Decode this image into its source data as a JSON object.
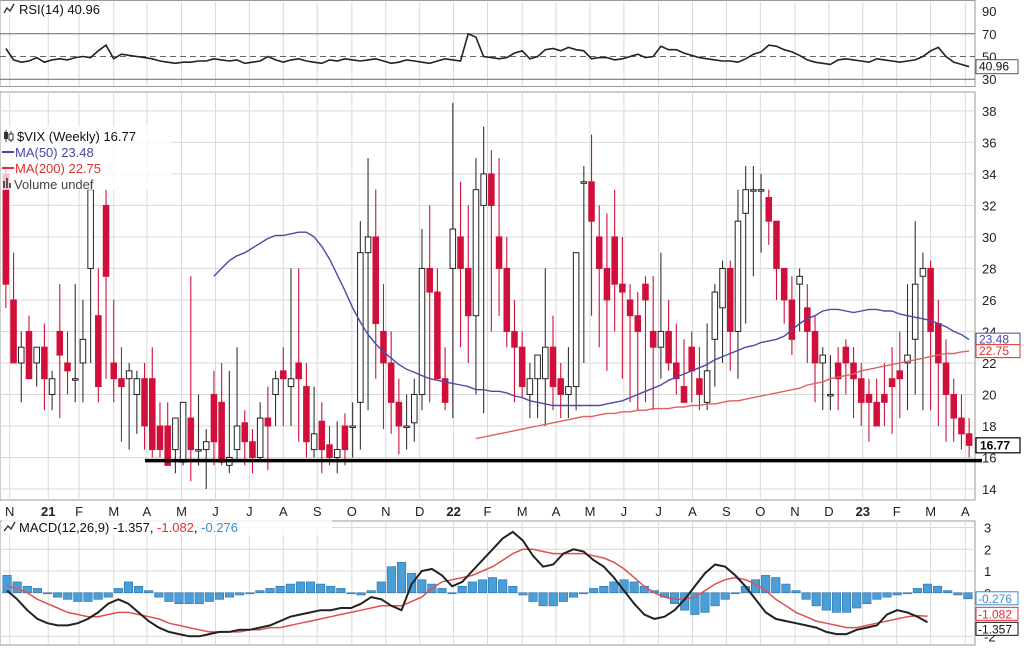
{
  "chart_data": [
    {
      "panel": "rsi",
      "type": "line",
      "header": "RSI(14) 40.96",
      "title": "RSI(14)",
      "last_value_label": "40.96",
      "y_ticks": [
        "30",
        "50",
        "70",
        "90"
      ],
      "ylim": [
        24,
        98
      ],
      "reference_lines": [
        30,
        50,
        70
      ],
      "x": [
        0,
        1,
        2,
        3,
        4,
        5,
        6,
        7,
        8,
        9,
        10,
        11,
        12,
        13,
        14,
        15,
        16,
        17,
        18,
        19,
        20,
        21,
        22,
        23,
        24,
        25,
        26,
        27,
        28,
        29,
        30,
        31,
        32,
        33,
        34,
        35,
        36,
        37,
        38,
        39,
        40,
        41,
        42,
        43,
        44,
        45,
        46,
        47,
        48,
        49,
        50,
        51,
        52,
        53,
        54,
        55,
        56,
        57,
        58,
        59,
        60,
        61,
        62,
        63,
        64,
        65,
        66,
        67,
        68,
        69,
        70,
        71,
        72,
        73,
        74,
        75,
        76,
        77,
        78,
        79,
        80,
        81,
        82,
        83,
        84,
        85,
        86,
        87,
        88,
        89,
        90,
        91,
        92,
        93,
        94,
        95,
        96,
        97,
        98,
        99,
        100,
        101,
        102,
        103,
        104,
        105,
        106,
        107,
        108,
        109,
        110,
        111,
        112,
        113,
        114,
        115,
        116,
        117,
        118,
        119,
        120,
        121,
        122,
        123,
        124,
        125
      ],
      "values": [
        57,
        47,
        45,
        46,
        49,
        45,
        47,
        48,
        47,
        49,
        50,
        49,
        55,
        60,
        48,
        52,
        51,
        50,
        49,
        48,
        46,
        45,
        44,
        45,
        45,
        46,
        46,
        48,
        47,
        46,
        47,
        44,
        45,
        46,
        50,
        47,
        45,
        47,
        48,
        46,
        45,
        44,
        47,
        46,
        48,
        47,
        46,
        47,
        48,
        46,
        44,
        45,
        47,
        46,
        45,
        44,
        46,
        48,
        47,
        46,
        70,
        67,
        50,
        49,
        48,
        49,
        53,
        55,
        48,
        50,
        56,
        57,
        55,
        58,
        56,
        55,
        48,
        49,
        49,
        47,
        48,
        50,
        52,
        49,
        50,
        59,
        56,
        56,
        53,
        51,
        49,
        48,
        47,
        46,
        46,
        45,
        48,
        52,
        54,
        60,
        59,
        56,
        54,
        51,
        47,
        45,
        44,
        43,
        47,
        48,
        47,
        46,
        45,
        48,
        47,
        46,
        45,
        46,
        47,
        50,
        55,
        58,
        50,
        45,
        43,
        41
      ]
    },
    {
      "panel": "price",
      "type": "candlestick",
      "header": "$VIX (Weekly) 16.77",
      "title": "$VIX (Weekly)",
      "last_value": 16.77,
      "last_value_label": "16.77",
      "legend": [
        {
          "label": "MA(50) 23.48",
          "color": "#4747a8"
        },
        {
          "label": "MA(200) 22.75",
          "color": "#e03030"
        },
        {
          "label": "Volume undef",
          "color": "#555555"
        }
      ],
      "y_ticks": [
        "14",
        "16",
        "18",
        "20",
        "22",
        "24",
        "26",
        "28",
        "30",
        "32",
        "34",
        "36",
        "38"
      ],
      "ylim": [
        13.3,
        39.2
      ],
      "support_level": 15.8,
      "x_labels": [
        "N",
        "21",
        "F",
        "M",
        "A",
        "M",
        "J",
        "J",
        "A",
        "S",
        "O",
        "N",
        "D",
        "22",
        "F",
        "M",
        "A",
        "M",
        "J",
        "J",
        "A",
        "S",
        "O",
        "N",
        "D",
        "23",
        "F",
        "M",
        "A"
      ],
      "bold_x_labels": [
        "21",
        "22",
        "23"
      ],
      "x_label_week": [
        0.5,
        5.5,
        9.5,
        14,
        18.3,
        22.8,
        27.2,
        31.6,
        36,
        40.4,
        44.9,
        49.3,
        53.7,
        58.1,
        62.5,
        67,
        71.4,
        75.8,
        80.2,
        84.7,
        89.1,
        93.5,
        97.9,
        102.4,
        106.8,
        111.2,
        115.6,
        120,
        124.5
      ],
      "categories_count": 126,
      "candles": {
        "open": [
          34,
          26,
          22,
          24,
          22,
          23,
          20,
          24,
          22,
          21,
          22,
          28,
          25,
          32,
          22,
          21,
          21,
          20,
          21,
          21,
          18,
          18,
          16.5,
          15.7,
          18.5,
          16.5,
          16.5,
          20,
          19.5,
          15.5,
          16.5,
          18.2,
          17,
          16,
          18.5,
          20,
          21.5,
          20.5,
          22,
          20.5,
          16.5,
          18.3,
          16.8,
          16,
          18,
          18,
          19.5,
          29,
          30,
          24,
          22,
          19.5,
          18,
          18.2,
          20,
          28,
          26.5,
          21,
          28,
          30,
          28,
          25,
          32,
          34,
          30,
          28,
          24,
          23,
          20,
          21,
          21,
          23,
          21,
          20,
          20.5,
          33.5,
          33.5,
          30,
          28,
          30,
          27,
          26,
          25,
          27,
          24,
          23,
          24,
          22,
          20.5,
          23,
          21,
          19.5,
          23.5,
          25.5,
          28,
          24,
          31.5,
          33,
          33,
          32.5,
          31,
          28,
          26,
          27,
          25.5,
          24,
          22,
          20,
          22,
          23,
          22,
          21,
          20,
          19.5,
          20,
          21,
          21.5,
          22,
          23.5,
          27.5,
          28,
          24.5,
          22,
          20,
          18.5,
          17.5
        ],
        "high": [
          34.5,
          29,
          24,
          25,
          23,
          24.5,
          21.5,
          27,
          24,
          27,
          26,
          33.5,
          28,
          33,
          26,
          23,
          22,
          21.5,
          22,
          23,
          19.5,
          19.5,
          17.5,
          19,
          27.5,
          20,
          17.8,
          21.5,
          22,
          21.5,
          23,
          19,
          17.8,
          19.5,
          20.5,
          21.5,
          23,
          28,
          28,
          22,
          20.5,
          19.5,
          18,
          18.3,
          18.8,
          19.5,
          31,
          35,
          33,
          27,
          24,
          21,
          20,
          21,
          30.5,
          32,
          28,
          23,
          38.5,
          33.5,
          32,
          35,
          37,
          35.5,
          35,
          30,
          26,
          24,
          22,
          22,
          28,
          25,
          22,
          23,
          28.5,
          34.5,
          36.5,
          32,
          31.5,
          33,
          30,
          27,
          26.5,
          27.5,
          27.5,
          29,
          26,
          24.5,
          23.5,
          24,
          23,
          24.5,
          27,
          28.5,
          28.5,
          33,
          34.5,
          34.5,
          34,
          33,
          30,
          28,
          27.5,
          28,
          27,
          25,
          23,
          22.5,
          23,
          23.5,
          23,
          22,
          21,
          21,
          22,
          23,
          24,
          27,
          31,
          29,
          28.5,
          26,
          23.5,
          21,
          20,
          18.5
        ],
        "low": [
          25.5,
          22,
          19.5,
          21,
          20.5,
          19,
          19,
          18.5,
          20,
          19.5,
          19.5,
          22,
          19.5,
          21,
          19.5,
          17,
          16.5,
          17.5,
          16.5,
          16,
          16,
          15.5,
          15,
          15.5,
          14.5,
          15.5,
          14,
          15.5,
          15.5,
          15,
          15.8,
          15.5,
          15,
          15.7,
          15.2,
          18,
          18,
          18,
          17,
          16,
          16,
          15,
          15.5,
          15,
          15.5,
          16,
          16.5,
          19,
          21,
          17.8,
          17.5,
          16.2,
          16.5,
          17,
          19,
          19.5,
          22,
          19,
          18.5,
          23,
          22,
          20,
          18.8,
          24,
          25,
          23,
          19.5,
          19.8,
          18.5,
          18.5,
          18,
          19,
          18.5,
          18.5,
          19,
          22,
          25,
          23,
          21.5,
          24,
          21,
          19.5,
          19,
          19.5,
          19,
          21,
          21.5,
          20,
          19.5,
          19.5,
          19,
          19,
          20.5,
          22,
          21.5,
          21,
          24.5,
          27.5,
          29,
          29.5,
          26,
          24.5,
          22.5,
          24,
          22,
          19.5,
          19,
          19,
          19,
          20,
          18.5,
          18,
          17,
          18,
          18,
          17.5,
          18.5,
          19,
          20,
          19,
          19,
          18,
          17,
          17,
          16.5,
          16
        ],
        "close": [
          27,
          22,
          23,
          21,
          23,
          21,
          21,
          22.5,
          21.5,
          21,
          23.5,
          33,
          20.5,
          27.5,
          21,
          20.5,
          21.5,
          21,
          18,
          16.5,
          16.5,
          15.5,
          18.5,
          19.5,
          16.5,
          16.5,
          17,
          17,
          15.7,
          16,
          18,
          17,
          16,
          18.5,
          18,
          21,
          21,
          21,
          21,
          17,
          17.5,
          16.5,
          16,
          16.5,
          16.5,
          18,
          29,
          30,
          24.5,
          22,
          19.5,
          18,
          18,
          20,
          28,
          26.5,
          21,
          19.5,
          30.5,
          28,
          25,
          33,
          34,
          32,
          28,
          24,
          23,
          20.5,
          21,
          22.5,
          23,
          20.5,
          20,
          20.5,
          29,
          33.5,
          31,
          28,
          26,
          27,
          26.5,
          25,
          24,
          26,
          23,
          24,
          22,
          21,
          19.5,
          21.5,
          20,
          21.5,
          26.5,
          28,
          24,
          31,
          33,
          33,
          33,
          31,
          28,
          26,
          23.5,
          27.5,
          24,
          22,
          22.5,
          20,
          21,
          22,
          21,
          19.5,
          19.5,
          18,
          19.5,
          20.5,
          21,
          22.5,
          27,
          28,
          24,
          22,
          20,
          18.5,
          17.5,
          16.77
        ]
      },
      "ma50": [
        27.5,
        28,
        28.5,
        28.8,
        29,
        29.3,
        29.6,
        29.9,
        30.1,
        30.1,
        30.2,
        30.3,
        30.3,
        30,
        29.4,
        28.6,
        27.6,
        26.6,
        25.5,
        24.6,
        23.8,
        23.2,
        22.7,
        22.3,
        21.9,
        21.6,
        21.4,
        21.2,
        21,
        20.9,
        20.8,
        20.7,
        20.6,
        20.5,
        20.3,
        20.3,
        20.2,
        20.2,
        20.1,
        19.9,
        19.8,
        19.6,
        19.5,
        19.4,
        19.3,
        19.3,
        19.3,
        19.3,
        19.3,
        19.3,
        19.3,
        19.4,
        19.5,
        19.6,
        19.8,
        20,
        20.2,
        20.4,
        20.6,
        20.9,
        21.1,
        21.3,
        21.5,
        21.7,
        21.9,
        22.2,
        22.4,
        22.6,
        22.8,
        23,
        23.1,
        23.3,
        23.4,
        23.5,
        23.7,
        24.1,
        24.5,
        24.8,
        25,
        25.3,
        25.4,
        25.4,
        25.3,
        25.2,
        25.3,
        25.4,
        25.4,
        25.3,
        25.3,
        25.1,
        25,
        24.9,
        24.8,
        24.7,
        24.5,
        24.3,
        24,
        23.8,
        23.48
      ],
      "ma200": [
        17.2,
        17.3,
        17.4,
        17.5,
        17.6,
        17.7,
        17.8,
        17.9,
        18,
        18.1,
        18.2,
        18.3,
        18.4,
        18.5,
        18.6,
        18.6,
        18.7,
        18.8,
        18.8,
        18.9,
        18.9,
        19,
        19,
        19.1,
        19.1,
        19.1,
        19.2,
        19.2,
        19.3,
        19.3,
        19.4,
        19.4,
        19.5,
        19.6,
        19.6,
        19.7,
        19.8,
        19.9,
        20,
        20.1,
        20.2,
        20.3,
        20.4,
        20.6,
        20.7,
        20.8,
        21,
        21.1,
        21.2,
        21.3,
        21.5,
        21.6,
        21.7,
        21.8,
        21.9,
        22,
        22.1,
        22.2,
        22.3,
        22.4,
        22.5,
        22.6,
        22.6,
        22.7,
        22.75
      ]
    },
    {
      "panel": "macd",
      "type": "line+bar",
      "header_parts": [
        {
          "text": "MACD(12,26,9)",
          "color": "#111111"
        },
        {
          "text": "-1.357",
          "color": "#111111"
        },
        {
          "text": "-1.082",
          "color": "#e03030"
        },
        {
          "text": "-0.276",
          "color": "#3a8fd0"
        }
      ],
      "y_ticks": [
        "-2",
        "0",
        "1",
        "2",
        "3"
      ],
      "ylim": [
        -2.4,
        3.3
      ],
      "tags": [
        {
          "label": "-0.276",
          "color": "#3a8fd0",
          "value": -0.276
        },
        {
          "label": "-1.082",
          "color": "#e03030",
          "value": -1.082
        },
        {
          "label": "-1.357",
          "color": "#111111",
          "value": -1.357
        }
      ],
      "macd": [
        0.1,
        -0.3,
        -0.8,
        -1.2,
        -1.4,
        -1.5,
        -1.5,
        -1.4,
        -1.2,
        -0.9,
        -0.5,
        -0.3,
        -0.5,
        -0.9,
        -1.3,
        -1.6,
        -1.8,
        -1.9,
        -2,
        -2,
        -1.9,
        -1.8,
        -1.8,
        -1.7,
        -1.7,
        -1.6,
        -1.5,
        -1.3,
        -1.1,
        -1,
        -0.9,
        -0.8,
        -0.8,
        -0.7,
        -0.7,
        -0.5,
        -0.2,
        -0.3,
        -0.6,
        -0.8,
        0.4,
        1,
        1.1,
        0.8,
        0.3,
        0.5,
        1,
        1.5,
        2,
        2.5,
        2.8,
        2.4,
        1.7,
        1.2,
        1.3,
        1.8,
        2,
        1.9,
        1.5,
        1.2,
        0.7,
        0.1,
        -0.5,
        -1,
        -1.2,
        -1.1,
        -0.8,
        -0.3,
        0.3,
        0.9,
        1.3,
        1.2,
        0.8,
        0.3,
        -0.3,
        -0.9,
        -1.2,
        -1.3,
        -1.4,
        -1.5,
        -1.6,
        -1.8,
        -1.9,
        -1.9,
        -1.7,
        -1.6,
        -1.5,
        -1,
        -0.8,
        -0.9,
        -1.1,
        -1.357
      ],
      "signal": [
        0.3,
        0.2,
        0,
        -0.3,
        -0.5,
        -0.7,
        -0.9,
        -1,
        -1.1,
        -1.1,
        -1,
        -0.9,
        -0.9,
        -1,
        -1.1,
        -1.2,
        -1.4,
        -1.5,
        -1.6,
        -1.7,
        -1.8,
        -1.8,
        -1.8,
        -1.8,
        -1.7,
        -1.7,
        -1.6,
        -1.6,
        -1.5,
        -1.4,
        -1.3,
        -1.2,
        -1.1,
        -1,
        -0.9,
        -0.8,
        -0.7,
        -0.6,
        -0.6,
        -0.6,
        -0.4,
        -0.2,
        0.2,
        0.5,
        0.6,
        0.7,
        0.8,
        1,
        1.2,
        1.5,
        1.8,
        2,
        2,
        1.9,
        1.8,
        1.8,
        1.8,
        1.8,
        1.7,
        1.6,
        1.4,
        1.1,
        0.7,
        0.3,
        0,
        -0.2,
        -0.3,
        -0.3,
        -0.2,
        0.1,
        0.4,
        0.6,
        0.7,
        0.6,
        0.4,
        0.1,
        -0.3,
        -0.6,
        -0.9,
        -1.1,
        -1.3,
        -1.4,
        -1.5,
        -1.6,
        -1.6,
        -1.5,
        -1.4,
        -1.3,
        -1.2,
        -1.1,
        -1.05,
        -1.082
      ],
      "histogram": [
        0.8,
        0.5,
        0.3,
        0.2,
        0,
        -0.2,
        -0.3,
        -0.4,
        -0.4,
        -0.3,
        -0.2,
        0.2,
        0.5,
        0.3,
        0.1,
        -0.2,
        -0.4,
        -0.5,
        -0.5,
        -0.5,
        -0.4,
        -0.3,
        -0.2,
        -0.1,
        0,
        0.1,
        0.2,
        0.3,
        0.4,
        0.5,
        0.5,
        0.4,
        0.3,
        0.2,
        0,
        -0.1,
        0.1,
        0.5,
        1.2,
        1.4,
        0.9,
        0.6,
        0.4,
        0.2,
        0,
        0.3,
        0.5,
        0.6,
        0.7,
        0.6,
        0.3,
        -0.1,
        -0.4,
        -0.6,
        -0.6,
        -0.4,
        -0.2,
        0,
        0.2,
        0.3,
        0.5,
        0.6,
        0.5,
        0.3,
        0.1,
        -0.2,
        -0.5,
        -0.8,
        -1,
        -0.9,
        -0.6,
        -0.3,
        0,
        0.3,
        0.6,
        0.8,
        0.7,
        0.4,
        0.1,
        -0.3,
        -0.6,
        -0.8,
        -0.9,
        -0.9,
        -0.7,
        -0.5,
        -0.3,
        -0.2,
        -0.1,
        0,
        0.2,
        0.4,
        0.3,
        0.1,
        -0.1,
        -0.276
      ]
    }
  ]
}
